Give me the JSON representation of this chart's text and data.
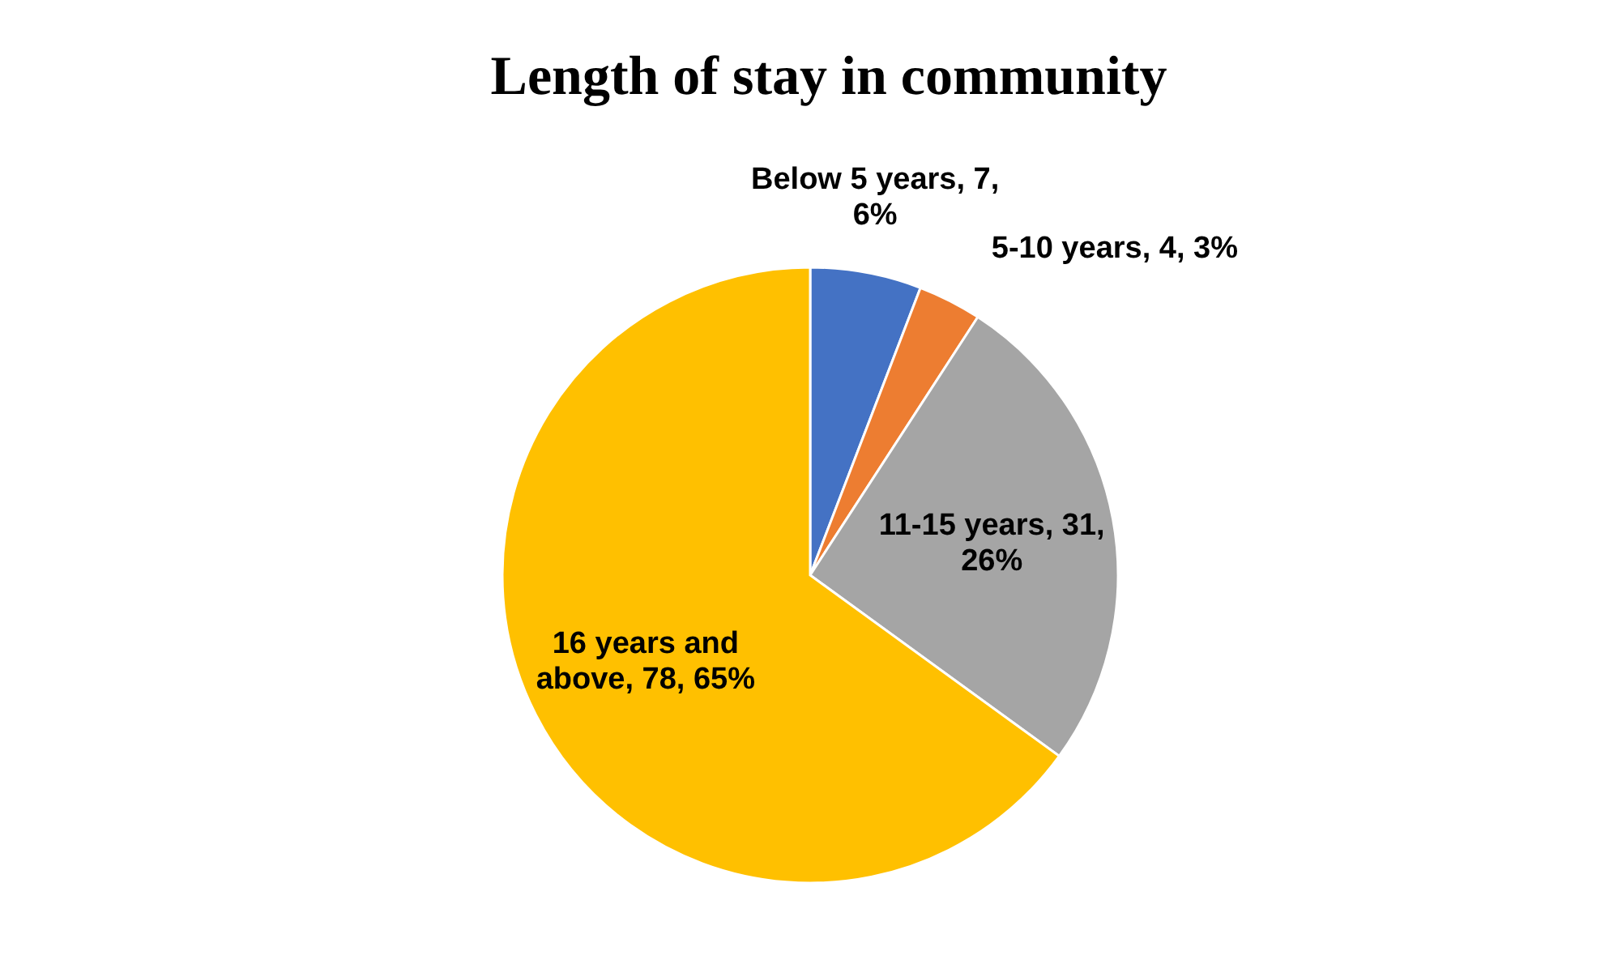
{
  "chart_data": {
    "type": "pie",
    "title": "Length of stay in community",
    "categories": [
      "Below 5 years",
      "5-10 years",
      "11-15 years",
      "16 years and above"
    ],
    "values": [
      7,
      4,
      31,
      78
    ],
    "colors": [
      "#4472c4",
      "#ed7d31",
      "#a5a5a5",
      "#ffc000"
    ],
    "value_labels": [
      "7, 6%",
      "4, 3%",
      "31, 26%",
      "78, 65%"
    ]
  }
}
